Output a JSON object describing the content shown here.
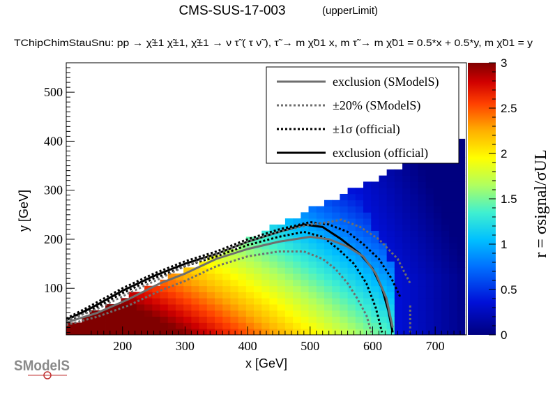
{
  "chart_data": {
    "type": "heatmap",
    "title": "CMS-SUS-17-003",
    "title_suffix": "(upperLimit)",
    "subtitle": "TChipChimStauSnu: pp  → χ̃±1 χ̃±1, χ̃±1 → ν τ̃ ( τ ν̃ ), τ̃ → m χ̃01 x, m τ̃ → m χ̃01 = 0.5*x + 0.5*y, m χ̃01 = y",
    "xlabel": "x [GeV]",
    "ylabel": "y [GeV]",
    "zlabel": "r = σsignal/σUL",
    "xlim": [
      110,
      750
    ],
    "ylim": [
      5,
      560
    ],
    "zlim": [
      0,
      3
    ],
    "xticks": [
      200,
      300,
      400,
      500,
      600,
      700
    ],
    "yticks": [
      100,
      200,
      300,
      400,
      500
    ],
    "zticks": [
      0,
      0.5,
      1,
      1.5,
      2,
      2.5,
      3
    ],
    "heat_grid": {
      "x_start": 110,
      "x_step": 12.5,
      "nx": 51,
      "y_start": 5,
      "y_step": 12.5,
      "ny": 44
    },
    "legend": [
      {
        "label": "exclusion (SModelS)",
        "style": "solid",
        "color": "#6e6e6e"
      },
      {
        "label": "±20% (SModelS)",
        "style": "dotted",
        "color": "#6e6e6e"
      },
      {
        "label": "±1σ (official)",
        "style": "dotted",
        "color": "#000000"
      },
      {
        "label": "exclusion (official)",
        "style": "solid",
        "color": "#000000"
      }
    ],
    "series": [
      {
        "name": "exclusion (official)",
        "style": "solid",
        "color": "#000000",
        "x": [
          110,
          150,
          200,
          250,
          300,
          350,
          400,
          450,
          490,
          520,
          550,
          580,
          600,
          615,
          625,
          632
        ],
        "y": [
          35,
          60,
          95,
          125,
          150,
          170,
          195,
          215,
          230,
          225,
          200,
          170,
          140,
          100,
          55,
          10
        ]
      },
      {
        "name": "+1σ (official)",
        "style": "dotted",
        "color": "#000000",
        "x": [
          110,
          150,
          200,
          250,
          300,
          350,
          400,
          450,
          500,
          530,
          560,
          585,
          610,
          630,
          645
        ],
        "y": [
          38,
          65,
          100,
          130,
          155,
          175,
          200,
          220,
          235,
          230,
          215,
          190,
          160,
          120,
          80
        ]
      },
      {
        "name": "-1σ (official)",
        "style": "dotted",
        "color": "#000000",
        "x": [
          110,
          150,
          200,
          250,
          300,
          350,
          400,
          450,
          490,
          520,
          545,
          570,
          590,
          605,
          615
        ],
        "y": [
          32,
          55,
          90,
          120,
          145,
          165,
          188,
          205,
          215,
          205,
          180,
          150,
          110,
          60,
          10
        ]
      },
      {
        "name": "exclusion (SModelS)",
        "style": "solid",
        "color": "#6e6e6e",
        "x": [
          110,
          160,
          210,
          260,
          300,
          350,
          400,
          450,
          500,
          530,
          560,
          585,
          605,
          622,
          632
        ],
        "y": [
          30,
          50,
          78,
          110,
          130,
          160,
          180,
          195,
          205,
          200,
          185,
          165,
          130,
          80,
          20
        ]
      },
      {
        "name": "+20% (SModelS)",
        "style": "dotted",
        "color": "#6e6e6e",
        "x": [
          110,
          160,
          210,
          260,
          300,
          350,
          400,
          450,
          500,
          530,
          550,
          580,
          610,
          640,
          660
        ],
        "y": [
          34,
          58,
          90,
          120,
          145,
          170,
          195,
          215,
          230,
          235,
          240,
          225,
          200,
          160,
          110
        ]
      },
      {
        "name": "-20% (SModelS)",
        "style": "dotted",
        "color": "#6e6e6e",
        "x": [
          110,
          160,
          210,
          260,
          300,
          350,
          400,
          450,
          490,
          520,
          540,
          560,
          575,
          590,
          598
        ],
        "y": [
          25,
          42,
          65,
          95,
          115,
          145,
          165,
          175,
          175,
          160,
          140,
          110,
          80,
          45,
          10
        ]
      }
    ],
    "extra_marks": [
      {
        "name": "dotted-fragment",
        "x": [
          660,
          660
        ],
        "y": [
          65,
          10
        ]
      }
    ]
  },
  "logo": {
    "text": "SModelS"
  }
}
